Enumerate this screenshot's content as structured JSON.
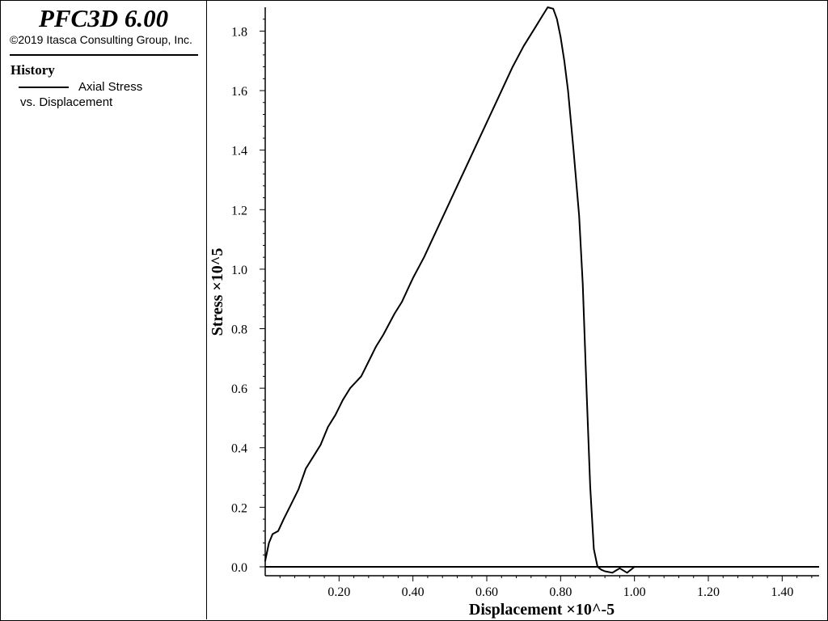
{
  "legend": {
    "app_title": "PFC3D 6.00",
    "copyright": "©2019 Itasca Consulting Group, Inc.",
    "heading": "History",
    "series_label": "Axial Stress",
    "series_label_2": "vs. Displacement"
  },
  "chart_data": {
    "type": "line",
    "xlabel": "Displacement ×10^-5",
    "ylabel": "Stress ×10^5",
    "xlim": [
      0.0,
      1.5
    ],
    "ylim": [
      -0.03,
      1.88
    ],
    "x_ticks": [
      "0.20",
      "0.40",
      "0.60",
      "0.80",
      "1.00",
      "1.20",
      "1.40"
    ],
    "y_ticks": [
      "0.0",
      "0.2",
      "0.4",
      "0.6",
      "0.8",
      "1.0",
      "1.2",
      "1.4",
      "1.6",
      "1.8"
    ],
    "grid": false,
    "series": [
      {
        "name": "Axial Stress",
        "color": "#000000",
        "x": [
          0.0,
          0.01,
          0.02,
          0.035,
          0.05,
          0.07,
          0.09,
          0.11,
          0.13,
          0.15,
          0.17,
          0.19,
          0.21,
          0.23,
          0.26,
          0.28,
          0.3,
          0.32,
          0.35,
          0.37,
          0.4,
          0.43,
          0.46,
          0.49,
          0.52,
          0.55,
          0.58,
          0.61,
          0.64,
          0.67,
          0.7,
          0.73,
          0.75,
          0.765,
          0.78,
          0.79,
          0.8,
          0.81,
          0.82,
          0.835,
          0.85,
          0.86,
          0.87,
          0.88,
          0.89,
          0.9,
          0.91,
          0.92,
          0.94,
          0.96,
          0.98,
          1.0,
          1.02,
          1.04,
          1.06,
          1.08
        ],
        "y": [
          0.02,
          0.08,
          0.11,
          0.12,
          0.16,
          0.21,
          0.26,
          0.33,
          0.37,
          0.41,
          0.47,
          0.51,
          0.56,
          0.6,
          0.64,
          0.69,
          0.74,
          0.78,
          0.85,
          0.89,
          0.97,
          1.04,
          1.12,
          1.2,
          1.28,
          1.36,
          1.44,
          1.52,
          1.6,
          1.68,
          1.75,
          1.81,
          1.85,
          1.88,
          1.875,
          1.84,
          1.78,
          1.7,
          1.6,
          1.4,
          1.18,
          0.95,
          0.6,
          0.27,
          0.06,
          0.0,
          -0.01,
          -0.015,
          -0.02,
          -0.005,
          -0.02,
          0.0,
          0.0,
          0.0,
          0.0,
          0.0
        ]
      }
    ]
  }
}
